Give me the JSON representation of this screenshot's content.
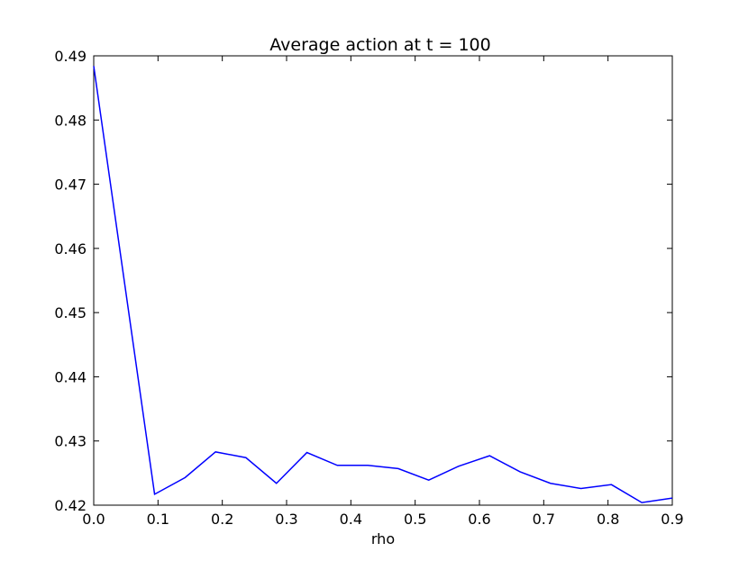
{
  "chart_data": {
    "type": "line",
    "title": "Average action at t = 100",
    "xlabel": "rho",
    "ylabel": "",
    "xlim": [
      0.0,
      0.9
    ],
    "ylim": [
      0.42,
      0.49
    ],
    "xticks": [
      "0.0",
      "0.1",
      "0.2",
      "0.3",
      "0.4",
      "0.5",
      "0.6",
      "0.7",
      "0.8",
      "0.9"
    ],
    "yticks": [
      "0.42",
      "0.43",
      "0.44",
      "0.45",
      "0.46",
      "0.47",
      "0.48",
      "0.49"
    ],
    "grid": false,
    "line_color": "#0000ff",
    "series": [
      {
        "x": [
          0.0,
          0.0947,
          0.1421,
          0.1895,
          0.2368,
          0.2842,
          0.3316,
          0.3789,
          0.4263,
          0.4737,
          0.5211,
          0.5684,
          0.6158,
          0.6632,
          0.7105,
          0.7579,
          0.8053,
          0.8526,
          0.9
        ],
        "values": [
          0.4884,
          0.4217,
          0.4243,
          0.4283,
          0.4274,
          0.4234,
          0.4282,
          0.4262,
          0.4262,
          0.4257,
          0.4239,
          0.4261,
          0.4277,
          0.4252,
          0.4234,
          0.4226,
          0.4232,
          0.4204,
          0.4211
        ]
      }
    ]
  }
}
